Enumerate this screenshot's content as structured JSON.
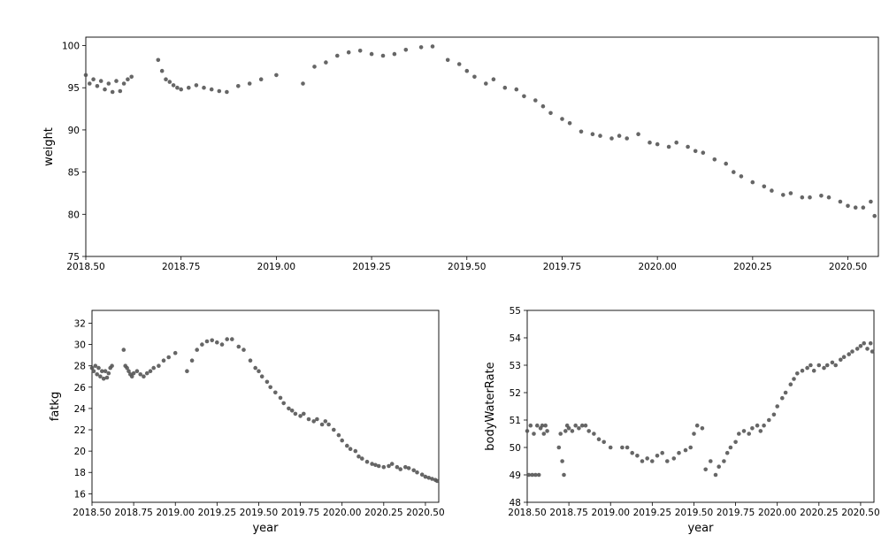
{
  "chart_data": [
    {
      "type": "scatter",
      "ylabel": "weight",
      "xlim": [
        2018.5,
        2020.58
      ],
      "ylim": [
        75,
        101
      ],
      "x_ticks": [
        "2018.50",
        "2018.75",
        "2019.00",
        "2019.25",
        "2019.50",
        "2019.75",
        "2020.00",
        "2020.25",
        "2020.50"
      ],
      "y_ticks": [
        "75",
        "80",
        "85",
        "90",
        "95",
        "100"
      ],
      "color": "#555555",
      "grid": false,
      "series": [
        {
          "x": [
            2018.5,
            2018.51,
            2018.52,
            2018.53,
            2018.54,
            2018.55,
            2018.56,
            2018.57,
            2018.58,
            2018.59,
            2018.6,
            2018.61,
            2018.62,
            2018.69,
            2018.7,
            2018.71,
            2018.72,
            2018.73,
            2018.74,
            2018.75,
            2018.77,
            2018.79,
            2018.81,
            2018.83,
            2018.85,
            2018.87,
            2018.9,
            2018.93,
            2018.96,
            2019.0,
            2019.07,
            2019.1,
            2019.13,
            2019.16,
            2019.19,
            2019.22,
            2019.25,
            2019.28,
            2019.31,
            2019.34,
            2019.38,
            2019.41,
            2019.45,
            2019.48,
            2019.5,
            2019.52,
            2019.55,
            2019.57,
            2019.6,
            2019.63,
            2019.65,
            2019.68,
            2019.7,
            2019.72,
            2019.75,
            2019.77,
            2019.8,
            2019.83,
            2019.85,
            2019.88,
            2019.9,
            2019.92,
            2019.95,
            2019.98,
            2020.0,
            2020.03,
            2020.05,
            2020.08,
            2020.1,
            2020.12,
            2020.15,
            2020.18,
            2020.2,
            2020.22,
            2020.25,
            2020.28,
            2020.3,
            2020.33,
            2020.35,
            2020.38,
            2020.4,
            2020.43,
            2020.45,
            2020.48,
            2020.5,
            2020.52,
            2020.54,
            2020.56,
            2020.57
          ],
          "y": [
            96.5,
            95.5,
            96.0,
            95.2,
            95.8,
            94.8,
            95.5,
            94.5,
            95.8,
            94.6,
            95.5,
            96.0,
            96.3,
            98.3,
            97.0,
            96.0,
            95.7,
            95.3,
            95.0,
            94.8,
            95.0,
            95.3,
            95.0,
            94.8,
            94.6,
            94.5,
            95.2,
            95.5,
            96.0,
            96.5,
            95.5,
            97.5,
            98.0,
            98.8,
            99.2,
            99.4,
            99.0,
            98.8,
            99.0,
            99.5,
            99.8,
            99.9,
            98.3,
            97.8,
            97.0,
            96.3,
            95.5,
            96.0,
            95.0,
            94.8,
            94.0,
            93.5,
            92.8,
            92.0,
            91.3,
            90.8,
            89.8,
            89.5,
            89.3,
            89.0,
            89.3,
            89.0,
            89.5,
            88.5,
            88.3,
            88.0,
            88.5,
            88.0,
            87.5,
            87.3,
            86.5,
            86.0,
            85.0,
            84.5,
            83.8,
            83.3,
            82.8,
            82.3,
            82.5,
            82.0,
            82.0,
            82.2,
            82.0,
            81.5,
            81.0,
            80.8,
            80.8,
            81.5,
            79.8
          ]
        }
      ]
    },
    {
      "type": "scatter",
      "xlabel": "year",
      "ylabel": "fatkg",
      "xlim": [
        2018.5,
        2020.58
      ],
      "ylim": [
        15.2,
        33.2
      ],
      "x_ticks": [
        "2018.50",
        "2018.75",
        "2019.00",
        "2019.25",
        "2019.50",
        "2019.75",
        "2020.00",
        "2020.25",
        "2020.50"
      ],
      "y_ticks": [
        "16",
        "18",
        "20",
        "22",
        "24",
        "26",
        "28",
        "30",
        "32"
      ],
      "color": "#555555",
      "grid": false,
      "series": [
        {
          "x": [
            2018.5,
            2018.51,
            2018.52,
            2018.53,
            2018.54,
            2018.55,
            2018.56,
            2018.57,
            2018.58,
            2018.59,
            2018.6,
            2018.61,
            2018.62,
            2018.69,
            2018.7,
            2018.71,
            2018.72,
            2018.73,
            2018.74,
            2018.75,
            2018.77,
            2018.79,
            2018.81,
            2018.83,
            2018.85,
            2018.87,
            2018.9,
            2018.93,
            2018.96,
            2019.0,
            2019.07,
            2019.1,
            2019.13,
            2019.16,
            2019.19,
            2019.22,
            2019.25,
            2019.28,
            2019.31,
            2019.34,
            2019.38,
            2019.41,
            2019.45,
            2019.48,
            2019.5,
            2019.52,
            2019.55,
            2019.57,
            2019.6,
            2019.63,
            2019.65,
            2019.68,
            2019.7,
            2019.72,
            2019.75,
            2019.77,
            2019.8,
            2019.83,
            2019.85,
            2019.88,
            2019.9,
            2019.92,
            2019.95,
            2019.98,
            2020.0,
            2020.03,
            2020.05,
            2020.08,
            2020.1,
            2020.12,
            2020.15,
            2020.18,
            2020.2,
            2020.22,
            2020.25,
            2020.28,
            2020.3,
            2020.33,
            2020.35,
            2020.38,
            2020.4,
            2020.43,
            2020.45,
            2020.48,
            2020.5,
            2020.52,
            2020.54,
            2020.56,
            2020.57
          ],
          "y": [
            27.8,
            27.5,
            28.0,
            27.2,
            27.8,
            27.0,
            27.5,
            26.8,
            27.5,
            26.9,
            27.3,
            27.8,
            28.0,
            29.5,
            28.0,
            27.8,
            27.5,
            27.2,
            27.0,
            27.3,
            27.5,
            27.2,
            27.0,
            27.3,
            27.5,
            27.8,
            28.0,
            28.5,
            28.8,
            29.2,
            27.5,
            28.5,
            29.5,
            30.0,
            30.3,
            30.4,
            30.2,
            30.0,
            30.5,
            30.5,
            29.8,
            29.5,
            28.5,
            27.8,
            27.5,
            27.0,
            26.5,
            26.0,
            25.5,
            25.0,
            24.5,
            24.0,
            23.8,
            23.5,
            23.3,
            23.5,
            23.0,
            22.8,
            23.0,
            22.5,
            22.8,
            22.5,
            22.0,
            21.5,
            21.0,
            20.5,
            20.2,
            20.0,
            19.5,
            19.3,
            19.0,
            18.8,
            18.7,
            18.6,
            18.5,
            18.6,
            18.8,
            18.5,
            18.3,
            18.5,
            18.4,
            18.2,
            18.0,
            17.8,
            17.6,
            17.5,
            17.4,
            17.3,
            17.2
          ]
        }
      ]
    },
    {
      "type": "scatter",
      "xlabel": "year",
      "ylabel": "bodyWaterRate",
      "xlim": [
        2018.5,
        2020.58
      ],
      "ylim": [
        48,
        55
      ],
      "x_ticks": [
        "2018.50",
        "2018.75",
        "2019.00",
        "2019.25",
        "2019.50",
        "2019.75",
        "2020.00",
        "2020.25",
        "2020.50"
      ],
      "y_ticks": [
        "48",
        "49",
        "50",
        "51",
        "52",
        "53",
        "54",
        "55"
      ],
      "color": "#555555",
      "grid": false,
      "series": [
        {
          "x": [
            2018.5,
            2018.51,
            2018.52,
            2018.53,
            2018.54,
            2018.55,
            2018.56,
            2018.57,
            2018.58,
            2018.59,
            2018.6,
            2018.61,
            2018.62,
            2018.69,
            2018.7,
            2018.71,
            2018.72,
            2018.73,
            2018.74,
            2018.75,
            2018.77,
            2018.79,
            2018.81,
            2018.83,
            2018.85,
            2018.87,
            2018.9,
            2018.93,
            2018.96,
            2019.0,
            2019.07,
            2019.1,
            2019.13,
            2019.16,
            2019.19,
            2019.22,
            2019.25,
            2019.28,
            2019.31,
            2019.34,
            2019.38,
            2019.41,
            2019.45,
            2019.48,
            2019.5,
            2019.52,
            2019.55,
            2019.57,
            2019.6,
            2019.63,
            2019.65,
            2019.68,
            2019.7,
            2019.72,
            2019.75,
            2019.77,
            2019.8,
            2019.83,
            2019.85,
            2019.88,
            2019.9,
            2019.92,
            2019.95,
            2019.98,
            2020.0,
            2020.03,
            2020.05,
            2020.08,
            2020.1,
            2020.12,
            2020.15,
            2020.18,
            2020.2,
            2020.22,
            2020.25,
            2020.28,
            2020.3,
            2020.33,
            2020.35,
            2020.38,
            2020.4,
            2020.43,
            2020.45,
            2020.48,
            2020.5,
            2020.52,
            2020.54,
            2020.56,
            2020.57
          ],
          "y": [
            50.6,
            49.0,
            50.8,
            49.0,
            50.5,
            49.0,
            50.8,
            49.0,
            50.7,
            50.8,
            50.5,
            50.8,
            50.6,
            50.0,
            50.5,
            49.5,
            49.0,
            50.6,
            50.8,
            50.7,
            50.6,
            50.8,
            50.7,
            50.8,
            50.8,
            50.6,
            50.5,
            50.3,
            50.2,
            50.0,
            50.0,
            50.0,
            49.8,
            49.7,
            49.5,
            49.6,
            49.5,
            49.7,
            49.8,
            49.5,
            49.6,
            49.8,
            49.9,
            50.0,
            50.5,
            50.8,
            50.7,
            49.2,
            49.5,
            49.0,
            49.3,
            49.5,
            49.8,
            50.0,
            50.2,
            50.5,
            50.6,
            50.5,
            50.7,
            50.8,
            50.6,
            50.8,
            51.0,
            51.2,
            51.5,
            51.8,
            52.0,
            52.3,
            52.5,
            52.7,
            52.8,
            52.9,
            53.0,
            52.8,
            53.0,
            52.9,
            53.0,
            53.1,
            53.0,
            53.2,
            53.3,
            53.4,
            53.5,
            53.6,
            53.7,
            53.8,
            53.6,
            53.8,
            53.5
          ]
        }
      ]
    }
  ]
}
